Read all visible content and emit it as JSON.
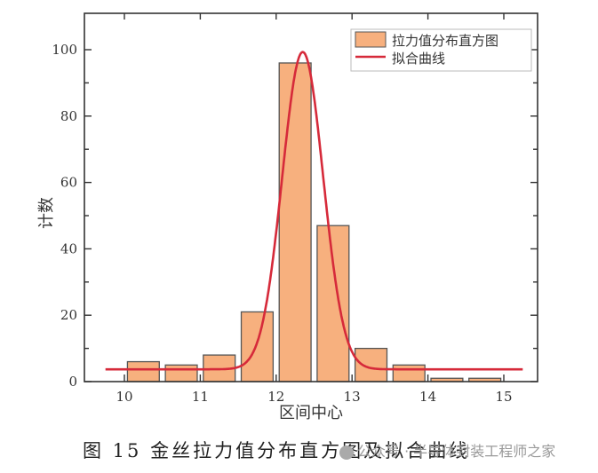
{
  "chart_data": {
    "type": "bar",
    "title": "",
    "xlabel": "区间中心",
    "ylabel": "计数",
    "xlim": [
      9.8,
      15.3
    ],
    "ylim": [
      0,
      110
    ],
    "x_ticks": [
      10,
      11,
      12,
      13,
      14,
      15
    ],
    "y_ticks": [
      0,
      20,
      40,
      60,
      80,
      100
    ],
    "grid": false,
    "legend_position": "upper right",
    "bar_width": 0.42,
    "categories": [
      10.25,
      10.75,
      11.25,
      11.75,
      12.25,
      12.75,
      13.25,
      13.75,
      14.25,
      14.75
    ],
    "series": [
      {
        "name": "拉力值分布直方图",
        "type": "bar",
        "color": "#f7b07e",
        "edge": "#555555",
        "values": [
          6,
          5,
          8,
          21,
          96,
          47,
          10,
          5,
          1,
          1
        ]
      },
      {
        "name": "拟合曲线",
        "type": "line",
        "color": "#d62a3a",
        "model": "gaussian",
        "baseline": 3.7,
        "amplitude": 95.6,
        "center": 12.35,
        "sigma": 0.27,
        "x_range": [
          9.75,
          15.25
        ]
      }
    ]
  },
  "caption": "图 15  金丝拉力值分布直方图及拟合曲线",
  "watermark": "公众号 · 半导体封装工程师之家"
}
